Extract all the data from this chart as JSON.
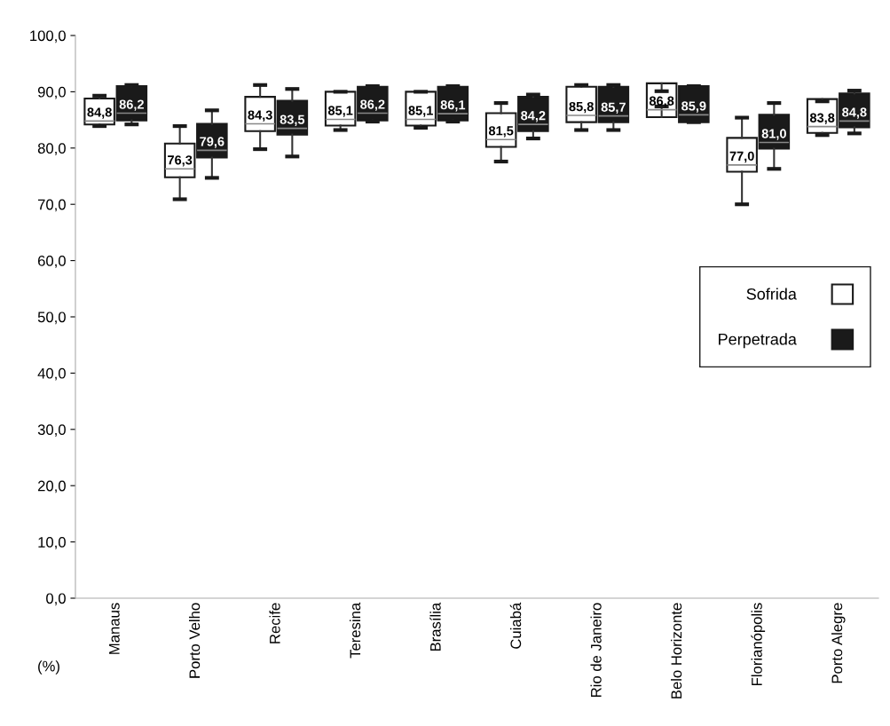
{
  "chart_data": {
    "type": "box",
    "ylabel": "(%)",
    "categories": [
      "Manaus",
      "Porto Velho",
      "Recife",
      "Teresina",
      "Brasília",
      "Cuiabá",
      "Rio de Janeiro",
      "Belo Horizonte",
      "Florianópolis",
      "Porto Alegre"
    ],
    "ylim": [
      0,
      100
    ],
    "yticks": [
      {
        "value": 0,
        "label": "0,0"
      },
      {
        "value": 10,
        "label": "10,0"
      },
      {
        "value": 20,
        "label": "20,0"
      },
      {
        "value": 30,
        "label": "30,0"
      },
      {
        "value": 40,
        "label": "40,0"
      },
      {
        "value": 50,
        "label": "50,0"
      },
      {
        "value": 60,
        "label": "60,0"
      },
      {
        "value": 70,
        "label": "70,0"
      },
      {
        "value": 80,
        "label": "80,0"
      },
      {
        "value": 90,
        "label": "90,0"
      },
      {
        "value": 100,
        "label": "100,0"
      }
    ],
    "grid": false,
    "legend": "right",
    "series": [
      {
        "name": "Sofrida",
        "color": "#ffffff",
        "value_labels": [
          "84,8",
          "76,3",
          "84,3",
          "85,1",
          "85,1",
          "81,5",
          "85,8",
          "86,8",
          "77,0",
          "83,8"
        ],
        "boxes": [
          {
            "low": 83.9,
            "q1": 84.2,
            "median": 84.8,
            "q3": 88.8,
            "high": 89.3
          },
          {
            "low": 70.9,
            "q1": 74.8,
            "median": 76.3,
            "q3": 80.8,
            "high": 83.9
          },
          {
            "low": 79.8,
            "q1": 83.0,
            "median": 84.3,
            "q3": 89.1,
            "high": 91.2
          },
          {
            "low": 83.2,
            "q1": 84.0,
            "median": 85.1,
            "q3": 90.0,
            "high": 90.0
          },
          {
            "low": 83.6,
            "q1": 84.0,
            "median": 85.1,
            "q3": 90.0,
            "high": 90.0
          },
          {
            "low": 77.6,
            "q1": 80.2,
            "median": 81.5,
            "q3": 86.2,
            "high": 88.0
          },
          {
            "low": 83.2,
            "q1": 84.6,
            "median": 85.8,
            "q3": 90.9,
            "high": 91.2
          },
          {
            "low": 87.4,
            "q1": 85.5,
            "median": 86.8,
            "q3": 91.5,
            "high": 90.1
          },
          {
            "low": 70.0,
            "q1": 75.8,
            "median": 77.0,
            "q3": 81.8,
            "high": 85.4
          },
          {
            "low": 82.3,
            "q1": 82.7,
            "median": 83.8,
            "q3": 88.7,
            "high": 88.3
          }
        ]
      },
      {
        "name": "Perpetrada",
        "color": "#1a1a1a",
        "value_labels": [
          "86,2",
          "79,6",
          "83,5",
          "86,2",
          "86,1",
          "84,2",
          "85,7",
          "85,9",
          "81,0",
          "84,8"
        ],
        "boxes": [
          {
            "low": 84.2,
            "q1": 84.9,
            "median": 86.2,
            "q3": 91.0,
            "high": 91.2
          },
          {
            "low": 74.7,
            "q1": 78.3,
            "median": 79.6,
            "q3": 84.3,
            "high": 86.7
          },
          {
            "low": 78.5,
            "q1": 82.4,
            "median": 83.5,
            "q3": 88.4,
            "high": 90.5
          },
          {
            "low": 84.7,
            "q1": 84.9,
            "median": 86.2,
            "q3": 90.9,
            "high": 91.0
          },
          {
            "low": 84.7,
            "q1": 84.9,
            "median": 86.1,
            "q3": 90.9,
            "high": 91.0
          },
          {
            "low": 81.7,
            "q1": 83.0,
            "median": 84.2,
            "q3": 89.1,
            "high": 89.5
          },
          {
            "low": 83.2,
            "q1": 84.6,
            "median": 85.7,
            "q3": 90.9,
            "high": 91.2
          },
          {
            "low": 84.6,
            "q1": 84.6,
            "median": 85.9,
            "q3": 91.0,
            "high": 91.0
          },
          {
            "low": 76.3,
            "q1": 79.9,
            "median": 81.0,
            "q3": 85.9,
            "high": 88.0
          },
          {
            "low": 82.6,
            "q1": 83.7,
            "median": 84.8,
            "q3": 89.7,
            "high": 90.2
          }
        ]
      }
    ]
  }
}
